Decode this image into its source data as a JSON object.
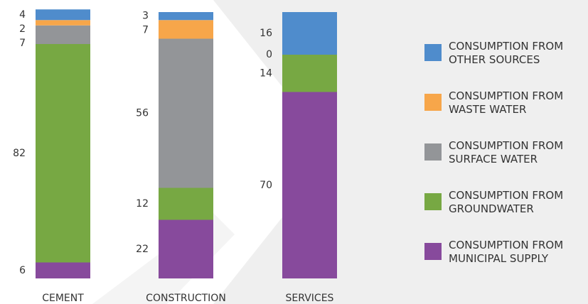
{
  "chart_data": {
    "type": "stacked_bar",
    "categories": [
      "CEMENT",
      "CONSTRUCTION",
      "SERVICES"
    ],
    "series": [
      {
        "name": "CONSUMPTION FROM MUNICIPAL SUPPLY",
        "color": "#874a9c",
        "values": [
          6,
          22,
          70
        ]
      },
      {
        "name": "CONSUMPTION FROM GROUNDWATER",
        "color": "#77a843",
        "values": [
          82,
          12,
          14
        ]
      },
      {
        "name": "CONSUMPTION FROM SURFACE WATER",
        "color": "#939598",
        "values": [
          7,
          56,
          0
        ]
      },
      {
        "name": "CONSUMPTION FROM WASTE WATER",
        "color": "#f7a64a",
        "values": [
          2,
          7,
          null
        ]
      },
      {
        "name": "CONSUMPTION FROM OTHER SOURCES",
        "color": "#4f8ccc",
        "values": [
          4,
          3,
          16
        ]
      }
    ],
    "ylim": [
      0,
      100
    ]
  }
}
